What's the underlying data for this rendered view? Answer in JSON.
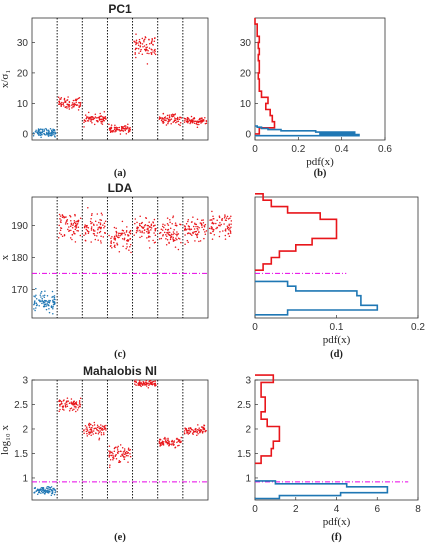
{
  "colors": {
    "class_a": "#1f77b4",
    "class_b": "#e8161b",
    "threshold": "#e600e6",
    "separator": "#000000"
  },
  "chart_data": [
    {
      "id": "a",
      "panel_label": "(a)",
      "type": "scatter",
      "title": "PC1",
      "ylabel": "x/σ₁",
      "ylim": [
        -2,
        38
      ],
      "yticks": [
        0,
        10,
        20,
        30
      ],
      "segments": 7,
      "series": [
        {
          "color_key": "class_a",
          "segment_means": [
            0.5
          ],
          "segment_spread": [
            1.1
          ]
        },
        {
          "color_key": "class_b",
          "segment_means": [
            10,
            5,
            1.5,
            28.5,
            4.8,
            4.2
          ],
          "segment_spread": [
            1.6,
            1.3,
            1.0,
            3.2,
            1.3,
            1.2
          ]
        }
      ]
    },
    {
      "id": "b",
      "panel_label": "(b)",
      "type": "histogram",
      "title": "",
      "xlabel": "pdf(x)",
      "xlim": [
        0,
        0.6
      ],
      "ylim": [
        -2,
        38
      ],
      "xticks": [
        0,
        0.2,
        0.4,
        0.6
      ],
      "yticks": [
        0,
        10,
        20,
        30
      ],
      "series": [
        {
          "color_key": "class_b",
          "bins": [
            [
              0,
              0.02
            ],
            [
              2,
              0.09
            ],
            [
              4,
              0.08
            ],
            [
              6,
              0.07
            ],
            [
              8,
              0.05
            ],
            [
              10,
              0.06
            ],
            [
              12,
              0.03
            ],
            [
              14,
              0.02
            ],
            [
              16,
              0.02
            ],
            [
              18,
              0.015
            ],
            [
              20,
              0.02
            ],
            [
              22,
              0.02
            ],
            [
              24,
              0.015
            ],
            [
              26,
              0.02
            ],
            [
              28,
              0.015
            ],
            [
              30,
              0.02
            ],
            [
              32,
              0.01
            ],
            [
              34,
              0.01
            ],
            [
              36,
              0
            ]
          ]
        },
        {
          "color_key": "class_a",
          "bins": [
            [
              -0.6,
              0.48
            ],
            [
              -0.2,
              0.3
            ],
            [
              0.2,
              0.46
            ],
            [
              0.6,
              0.28
            ],
            [
              1.0,
              0.12
            ],
            [
              1.4,
              0.06
            ],
            [
              1.8,
              0.03
            ],
            [
              2.2,
              0.01
            ]
          ]
        }
      ]
    },
    {
      "id": "c",
      "panel_label": "(c)",
      "type": "scatter",
      "title": "LDA",
      "ylabel": "x",
      "ylim": [
        161,
        199
      ],
      "yticks": [
        170,
        180,
        190
      ],
      "segments": 7,
      "threshold": 175,
      "series": [
        {
          "color_key": "class_a",
          "segment_means": [
            166
          ],
          "segment_spread": [
            2.3
          ]
        },
        {
          "color_key": "class_b",
          "segment_means": [
            190,
            189,
            186,
            189,
            188,
            188,
            190
          ],
          "segment_spread": [
            3.5,
            3.5,
            3.5,
            3.5,
            3.5,
            3.5,
            3.5
          ]
        }
      ]
    },
    {
      "id": "d",
      "panel_label": "(d)",
      "type": "histogram",
      "title": "",
      "xlabel": "pdf(x)",
      "xlim": [
        0,
        0.2
      ],
      "ylim": [
        161,
        199
      ],
      "xticks": [
        0,
        0.1,
        0.2
      ],
      "threshold": 175,
      "series": [
        {
          "color_key": "class_b",
          "bins": [
            [
              176,
              0.01
            ],
            [
              178,
              0.02
            ],
            [
              180,
              0.03
            ],
            [
              182,
              0.05
            ],
            [
              184,
              0.07
            ],
            [
              186,
              0.1
            ],
            [
              188,
              0.1
            ],
            [
              190,
              0.1
            ],
            [
              192,
              0.08
            ],
            [
              194,
              0.04
            ],
            [
              196,
              0.02
            ],
            [
              198,
              0.01
            ]
          ]
        },
        {
          "color_key": "class_a",
          "bins": [
            [
              162,
              0.04
            ],
            [
              163.5,
              0.15
            ],
            [
              165,
              0.13
            ],
            [
              166.5,
              0.13
            ],
            [
              168,
              0.125
            ],
            [
              169.5,
              0.05
            ],
            [
              171,
              0.04
            ]
          ]
        }
      ]
    },
    {
      "id": "e",
      "panel_label": "(e)",
      "type": "scatter",
      "title": "Mahalobis Nl",
      "ylabel": "log₁₀ x",
      "ylim": [
        0.55,
        3.0
      ],
      "yticks": [
        1,
        1.5,
        2,
        2.5,
        3
      ],
      "segments": 7,
      "threshold": 0.92,
      "series": [
        {
          "color_key": "class_a",
          "segment_means": [
            0.74
          ],
          "segment_spread": [
            0.06
          ]
        },
        {
          "color_key": "class_b",
          "segment_means": [
            2.5,
            1.97,
            1.5,
            2.93,
            1.73,
            1.97
          ],
          "segment_spread": [
            0.1,
            0.12,
            0.14,
            0.05,
            0.08,
            0.07
          ]
        }
      ]
    },
    {
      "id": "f",
      "panel_label": "(f)",
      "type": "histogram",
      "title": "",
      "xlabel": "pdf(x)",
      "xlim": [
        0,
        8
      ],
      "ylim": [
        0.55,
        3.0
      ],
      "xticks": [
        0,
        2,
        4,
        6,
        8
      ],
      "yticks": [
        1,
        1.5,
        2,
        2.5,
        3
      ],
      "threshold": 0.92,
      "series": [
        {
          "color_key": "class_b",
          "bins": [
            [
              1.3,
              0.3
            ],
            [
              1.45,
              0.8
            ],
            [
              1.6,
              0.9
            ],
            [
              1.75,
              1.2
            ],
            [
              1.9,
              1.2
            ],
            [
              2.05,
              0.6
            ],
            [
              2.2,
              0.3
            ],
            [
              2.35,
              0.5
            ],
            [
              2.5,
              0.5
            ],
            [
              2.65,
              0.3
            ],
            [
              2.8,
              0.3
            ],
            [
              2.95,
              0.9
            ]
          ]
        },
        {
          "color_key": "class_a",
          "bins": [
            [
              0.58,
              1.2
            ],
            [
              0.64,
              4.2
            ],
            [
              0.7,
              6.5
            ],
            [
              0.76,
              6.5
            ],
            [
              0.82,
              4.5
            ],
            [
              0.88,
              1.0
            ]
          ]
        }
      ]
    }
  ]
}
